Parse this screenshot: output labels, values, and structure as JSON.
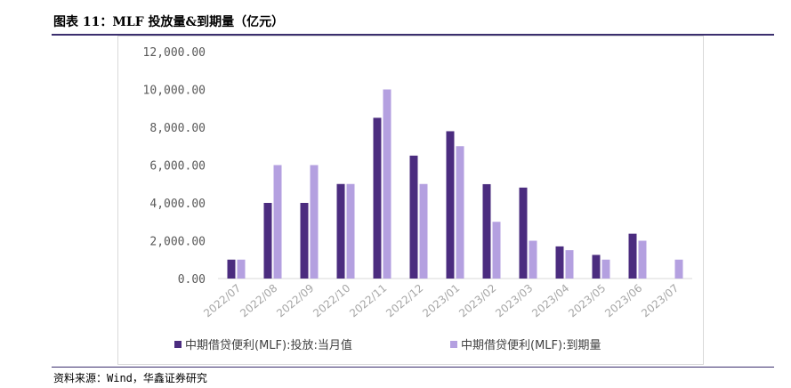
{
  "figure": {
    "title": "图表 11：MLF 投放量&到期量（亿元）",
    "source": "资料来源：Wind，华鑫证券研究"
  },
  "colors": {
    "series_1": "#4b2c7f",
    "series_2": "#b4a0e0",
    "rule": "#3b2f6e"
  },
  "chart_data": {
    "type": "bar",
    "title": "",
    "xlabel": "",
    "ylabel": "",
    "ylim": [
      0,
      12000
    ],
    "yticks": [
      0,
      2000,
      4000,
      6000,
      8000,
      10000,
      12000
    ],
    "ytick_labels": [
      "0.00",
      "2,000.00",
      "4,000.00",
      "6,000.00",
      "8,000.00",
      "10,000.00",
      "12,000.00"
    ],
    "grid": false,
    "legend_position": "bottom",
    "categories": [
      "2022/07",
      "2022/08",
      "2022/09",
      "2022/10",
      "2022/11",
      "2022/12",
      "2023/01",
      "2023/02",
      "2023/03",
      "2023/04",
      "2023/05",
      "2023/06",
      "2023/07"
    ],
    "series": [
      {
        "name": "中期借贷便利(MLF):投放:当月值",
        "values": [
          1000,
          4000,
          4000,
          5000,
          8500,
          6500,
          7790,
          4990,
          4810,
          1700,
          1250,
          2370,
          0
        ]
      },
      {
        "name": "中期借贷便利(MLF):到期量",
        "values": [
          1000,
          6000,
          6000,
          5000,
          10000,
          5000,
          7000,
          3000,
          2000,
          1500,
          1000,
          2000,
          1000
        ]
      }
    ]
  }
}
